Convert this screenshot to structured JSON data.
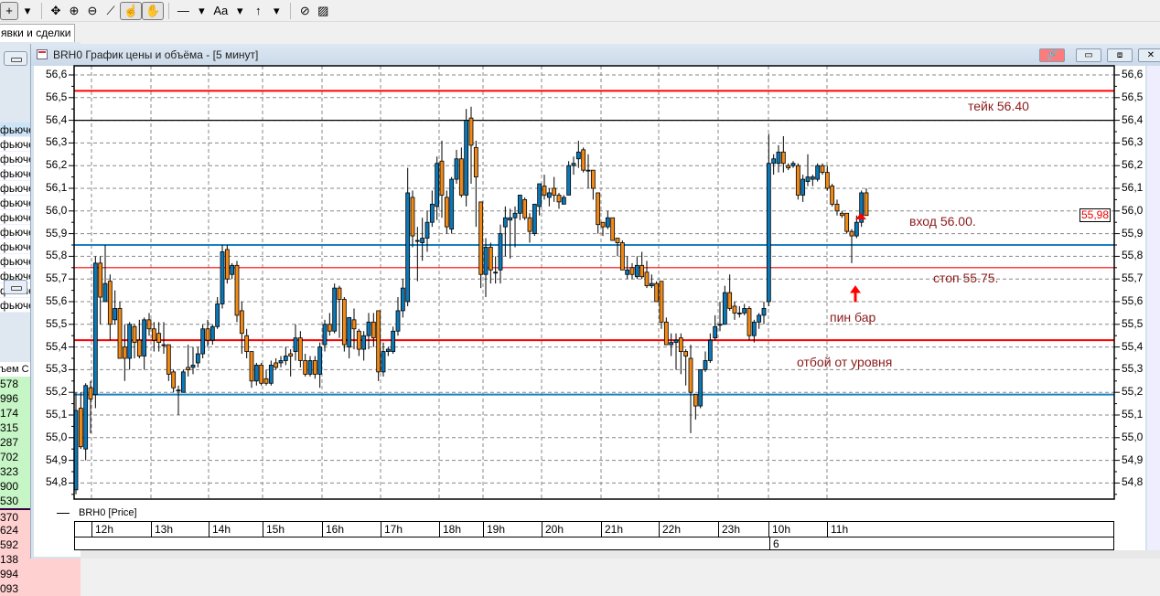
{
  "toolbar": {
    "items": [
      {
        "icon": "crosshair-icon",
        "glyph": "+"
      },
      {
        "icon": "dropdown-arrow-icon",
        "glyph": "▾"
      },
      {
        "icon": "move-icon",
        "glyph": "✥"
      },
      {
        "icon": "zoom-in-icon",
        "glyph": "⊕"
      },
      {
        "icon": "zoom-out-icon",
        "glyph": "⊖"
      },
      {
        "icon": "ruler-icon",
        "glyph": "⟋"
      },
      {
        "icon": "pointer-hand-icon",
        "glyph": "☝"
      },
      {
        "icon": "hand-icon",
        "glyph": "✋"
      },
      {
        "icon": "line-tool-icon",
        "glyph": "—"
      },
      {
        "icon": "dropdown-arrow-icon",
        "glyph": "▾"
      },
      {
        "icon": "text-tool-icon",
        "glyph": "Aa"
      },
      {
        "icon": "dropdown-arrow-icon",
        "glyph": "▾"
      },
      {
        "icon": "arrow-up-tool-icon",
        "glyph": "↑"
      },
      {
        "icon": "dropdown-arrow-icon",
        "glyph": "▾"
      },
      {
        "icon": "hide-drawings-icon",
        "glyph": "⊘"
      },
      {
        "icon": "eraser-icon",
        "glyph": "▨"
      }
    ]
  },
  "tabs": {
    "active": "явки и сделки"
  },
  "left_panel": {
    "list1": [
      "фьючe",
      "фьючe",
      "фьючe",
      "фьючe",
      "фьючe",
      "фьючe",
      "фьючe",
      "фьючe",
      "фьючe",
      "фьючe",
      "фьючe",
      "фьючe",
      "фьючe"
    ],
    "list2_header": "ъем С",
    "bids": [
      "578",
      "996",
      "174",
      "315",
      "287",
      "702",
      "323",
      "900",
      "530"
    ],
    "asks": [
      "370",
      "624",
      "592",
      "138",
      "994",
      "093"
    ],
    "bid_color": "#c6f5c6",
    "ask_color": "#ffd0d0"
  },
  "chart_window": {
    "title": "BRH0 График цены и объёма - [5 минут]",
    "link_button_color": "#ff7b7b",
    "legend": "BRH0 [Price]",
    "last_price": "55,98",
    "price_ticks": [
      "56,6",
      "56,5",
      "56,4",
      "56,3",
      "56,2",
      "56,1",
      "56,0",
      "55,9",
      "55,8",
      "55,7",
      "55,6",
      "55,5",
      "55,4",
      "55,3",
      "55,2",
      "55,1",
      "55,0",
      "54,9",
      "54,8"
    ],
    "time_labels": [
      "12h",
      "13h",
      "14h",
      "15h",
      "16h",
      "17h",
      "18h",
      "19h",
      "20h",
      "21h",
      "22h",
      "23h",
      "10h",
      "11h"
    ],
    "date_label": "6",
    "annotations": {
      "take": "тейк 56.40",
      "entry": "вход 56.00.",
      "stop": "стоп 55.75.",
      "pinbar": "пин бар",
      "bounce": "отбой от уровня"
    }
  },
  "chart_data": {
    "type": "candlestick",
    "ylim": [
      54.75,
      56.62
    ],
    "up_color": "#0b78b8",
    "down_color": "#f28a16",
    "levels": [
      {
        "price": 56.53,
        "color": "#ff0000",
        "weight": "thick"
      },
      {
        "price": 56.4,
        "color": "#000000",
        "weight": "thin"
      },
      {
        "price": 55.85,
        "color": "#1a80c0",
        "weight": "thick"
      },
      {
        "price": 55.75,
        "color": "#ff0000",
        "weight": "thin"
      },
      {
        "price": 55.43,
        "color": "#ff0000",
        "weight": "thick"
      },
      {
        "price": 55.19,
        "color": "#1a80c0",
        "weight": "thick"
      }
    ],
    "candles": [
      [
        54.77,
        55.2,
        54.75,
        55.12
      ],
      [
        55.13,
        55.2,
        54.95,
        54.96
      ],
      [
        54.95,
        55.24,
        54.9,
        55.23
      ],
      [
        55.22,
        55.25,
        55.02,
        55.17
      ],
      [
        55.19,
        55.8,
        55.13,
        55.77
      ],
      [
        55.77,
        55.8,
        55.5,
        55.62
      ],
      [
        55.6,
        55.85,
        55.6,
        55.68
      ],
      [
        55.69,
        55.72,
        55.43,
        55.5
      ],
      [
        55.52,
        55.65,
        55.5,
        55.57
      ],
      [
        55.57,
        55.6,
        55.35,
        55.35
      ],
      [
        55.4,
        55.5,
        55.25,
        55.35
      ],
      [
        55.35,
        55.51,
        55.3,
        55.5
      ],
      [
        55.49,
        55.5,
        55.35,
        55.42
      ],
      [
        55.43,
        55.52,
        55.35,
        55.36
      ],
      [
        55.36,
        55.53,
        55.3,
        55.52
      ],
      [
        55.52,
        55.55,
        55.45,
        55.48
      ],
      [
        55.48,
        55.51,
        55.38,
        55.43
      ],
      [
        55.46,
        55.51,
        55.38,
        55.42
      ],
      [
        55.41,
        55.51,
        55.37,
        55.41
      ],
      [
        55.41,
        55.41,
        55.25,
        55.28
      ],
      [
        55.29,
        55.3,
        55.2,
        55.22
      ],
      [
        55.21,
        55.23,
        55.1,
        55.21
      ],
      [
        55.2,
        55.3,
        55.2,
        55.29
      ],
      [
        55.31,
        55.41,
        55.27,
        55.3
      ],
      [
        55.31,
        55.4,
        55.28,
        55.32
      ],
      [
        55.33,
        55.4,
        55.31,
        55.37
      ],
      [
        55.37,
        55.5,
        55.35,
        55.48
      ],
      [
        55.48,
        55.52,
        55.4,
        55.43
      ],
      [
        55.43,
        55.5,
        55.41,
        55.49
      ],
      [
        55.49,
        55.62,
        55.48,
        55.59
      ],
      [
        55.59,
        55.85,
        55.57,
        55.82
      ],
      [
        55.83,
        55.85,
        55.68,
        55.7
      ],
      [
        55.72,
        55.77,
        55.7,
        55.76
      ],
      [
        55.76,
        55.78,
        55.51,
        55.54
      ],
      [
        55.56,
        55.6,
        55.37,
        55.46
      ],
      [
        55.45,
        55.48,
        55.35,
        55.38
      ],
      [
        55.38,
        55.38,
        55.22,
        55.25
      ],
      [
        55.25,
        55.33,
        55.23,
        55.32
      ],
      [
        55.32,
        55.33,
        55.23,
        55.24
      ],
      [
        55.26,
        55.3,
        55.23,
        55.24
      ],
      [
        55.24,
        55.34,
        55.23,
        55.32
      ],
      [
        55.33,
        55.35,
        55.3,
        55.31
      ],
      [
        55.33,
        55.36,
        55.31,
        55.34
      ],
      [
        55.34,
        55.4,
        55.32,
        55.36
      ],
      [
        55.37,
        55.39,
        55.27,
        55.36
      ],
      [
        55.38,
        55.5,
        55.34,
        55.44
      ],
      [
        55.44,
        55.47,
        55.31,
        55.34
      ],
      [
        55.34,
        55.37,
        55.27,
        55.28
      ],
      [
        55.28,
        55.36,
        55.27,
        55.34
      ],
      [
        55.34,
        55.36,
        55.26,
        55.28
      ],
      [
        55.28,
        55.42,
        55.22,
        55.4
      ],
      [
        55.41,
        55.52,
        55.38,
        55.5
      ],
      [
        55.5,
        55.55,
        55.45,
        55.47
      ],
      [
        55.47,
        55.68,
        55.46,
        55.66
      ],
      [
        55.66,
        55.67,
        55.44,
        55.61
      ],
      [
        55.61,
        55.62,
        55.38,
        55.41
      ],
      [
        55.4,
        55.53,
        55.35,
        55.53
      ],
      [
        55.52,
        55.57,
        55.39,
        55.48
      ],
      [
        55.47,
        55.48,
        55.36,
        55.39
      ],
      [
        55.39,
        55.47,
        55.34,
        55.45
      ],
      [
        55.45,
        55.55,
        55.39,
        55.51
      ],
      [
        55.51,
        55.55,
        55.4,
        55.44
      ],
      [
        55.56,
        55.56,
        55.25,
        55.29
      ],
      [
        55.29,
        55.42,
        55.27,
        55.38
      ],
      [
        55.38,
        55.4,
        55.36,
        55.39
      ],
      [
        55.38,
        55.49,
        55.37,
        55.47
      ],
      [
        55.47,
        55.62,
        55.45,
        55.56
      ],
      [
        55.56,
        55.7,
        55.53,
        55.66
      ],
      [
        55.6,
        56.19,
        55.58,
        56.08
      ],
      [
        56.06,
        56.09,
        55.84,
        55.89
      ],
      [
        55.87,
        55.93,
        55.69,
        55.87
      ],
      [
        55.86,
        55.97,
        55.78,
        55.88
      ],
      [
        55.88,
        56.0,
        55.82,
        55.95
      ],
      [
        55.95,
        56.09,
        55.93,
        56.03
      ],
      [
        56.02,
        56.24,
        55.96,
        56.21
      ],
      [
        56.22,
        56.31,
        55.97,
        56.07
      ],
      [
        56.06,
        56.09,
        55.9,
        55.93
      ],
      [
        55.92,
        56.15,
        55.9,
        56.14
      ],
      [
        56.14,
        56.27,
        56.12,
        56.23
      ],
      [
        56.23,
        56.28,
        56.06,
        56.07
      ],
      [
        56.07,
        56.45,
        56.02,
        56.4
      ],
      [
        56.41,
        56.46,
        56.12,
        56.29
      ],
      [
        56.28,
        56.31,
        55.93,
        56.15
      ],
      [
        56.04,
        56.04,
        55.66,
        55.72
      ],
      [
        55.72,
        55.88,
        55.62,
        55.84
      ],
      [
        55.84,
        55.86,
        55.68,
        55.74
      ],
      [
        55.73,
        55.8,
        55.68,
        55.73
      ],
      [
        55.74,
        55.94,
        55.68,
        55.9
      ],
      [
        55.93,
        56.02,
        55.8,
        55.97
      ],
      [
        55.96,
        56.01,
        55.79,
        55.97
      ],
      [
        55.97,
        56.02,
        55.84,
        55.99
      ],
      [
        55.99,
        56.07,
        55.96,
        56.07
      ],
      [
        56.05,
        56.06,
        55.96,
        55.97
      ],
      [
        55.97,
        55.99,
        55.86,
        55.91
      ],
      [
        55.9,
        56.03,
        55.89,
        56.03
      ],
      [
        56.02,
        56.12,
        55.98,
        56.12
      ],
      [
        56.11,
        56.16,
        56.05,
        56.07
      ],
      [
        56.06,
        56.1,
        56.02,
        56.08
      ],
      [
        56.1,
        56.15,
        56.04,
        56.07
      ],
      [
        56.07,
        56.08,
        56.01,
        56.04
      ],
      [
        56.03,
        56.07,
        56.03,
        56.06
      ],
      [
        56.07,
        56.22,
        56.07,
        56.2
      ],
      [
        56.2,
        56.24,
        56.16,
        56.21
      ],
      [
        56.23,
        56.31,
        56.19,
        56.26
      ],
      [
        56.27,
        56.28,
        56.17,
        56.18
      ],
      [
        56.18,
        56.25,
        56.1,
        56.18
      ],
      [
        56.18,
        56.18,
        56.05,
        56.1
      ],
      [
        56.08,
        56.08,
        55.9,
        55.94
      ],
      [
        55.95,
        55.95,
        55.89,
        55.93
      ],
      [
        55.93,
        56.0,
        55.92,
        55.97
      ],
      [
        55.97,
        55.97,
        55.87,
        55.87
      ],
      [
        55.88,
        55.88,
        55.8,
        55.86
      ],
      [
        55.86,
        55.87,
        55.74,
        55.74
      ],
      [
        55.72,
        55.8,
        55.7,
        55.74
      ],
      [
        55.75,
        55.77,
        55.7,
        55.72
      ],
      [
        55.71,
        55.8,
        55.7,
        55.76
      ],
      [
        55.76,
        55.82,
        55.7,
        55.71
      ],
      [
        55.73,
        55.78,
        55.66,
        55.67
      ],
      [
        55.67,
        55.72,
        55.66,
        55.68
      ],
      [
        55.68,
        55.69,
        55.6,
        55.6
      ],
      [
        55.69,
        55.69,
        55.48,
        55.51
      ],
      [
        55.51,
        55.53,
        55.41,
        55.41
      ],
      [
        55.41,
        55.46,
        55.36,
        55.42
      ],
      [
        55.42,
        55.46,
        55.3,
        55.43
      ],
      [
        55.44,
        55.46,
        55.28,
        55.38
      ],
      [
        55.38,
        55.39,
        55.23,
        55.36
      ],
      [
        55.35,
        55.41,
        55.02,
        55.2
      ],
      [
        55.19,
        55.19,
        55.08,
        55.14
      ],
      [
        55.14,
        55.3,
        55.13,
        55.3
      ],
      [
        55.3,
        55.38,
        55.29,
        55.34
      ],
      [
        55.34,
        55.46,
        55.33,
        55.43
      ],
      [
        55.44,
        55.54,
        55.43,
        55.49
      ],
      [
        55.5,
        55.6,
        55.47,
        55.5
      ],
      [
        55.5,
        55.67,
        55.5,
        55.64
      ],
      [
        55.64,
        55.72,
        55.56,
        55.57
      ],
      [
        55.58,
        55.6,
        55.52,
        55.55
      ],
      [
        55.55,
        55.58,
        55.53,
        55.55
      ],
      [
        55.55,
        55.59,
        55.54,
        55.57
      ],
      [
        55.57,
        55.58,
        55.43,
        55.45
      ],
      [
        55.45,
        55.52,
        55.42,
        55.51
      ],
      [
        55.51,
        55.55,
        55.48,
        55.54
      ],
      [
        55.54,
        55.6,
        55.5,
        55.57
      ],
      [
        55.6,
        56.34,
        55.58,
        56.21
      ],
      [
        56.21,
        56.25,
        56.16,
        56.23
      ],
      [
        56.21,
        56.29,
        56.17,
        56.26
      ],
      [
        56.26,
        56.33,
        56.17,
        56.21
      ],
      [
        56.2,
        56.21,
        56.18,
        56.19
      ],
      [
        56.2,
        56.22,
        56.19,
        56.21
      ],
      [
        56.2,
        56.21,
        56.05,
        56.07
      ],
      [
        56.07,
        56.16,
        56.04,
        56.14
      ],
      [
        56.13,
        56.25,
        56.11,
        56.15
      ],
      [
        56.14,
        56.16,
        56.11,
        56.15
      ],
      [
        56.14,
        56.21,
        56.13,
        56.2
      ],
      [
        56.2,
        56.21,
        56.16,
        56.17
      ],
      [
        56.17,
        56.2,
        56.09,
        56.1
      ],
      [
        56.11,
        56.12,
        56.02,
        56.03
      ],
      [
        56.03,
        56.05,
        55.98,
        56.0
      ],
      [
        55.99,
        56.0,
        55.97,
        55.98
      ],
      [
        55.99,
        55.99,
        55.9,
        55.91
      ],
      [
        55.91,
        55.92,
        55.77,
        55.89
      ],
      [
        55.89,
        55.98,
        55.88,
        55.95
      ],
      [
        55.95,
        56.09,
        55.93,
        56.08
      ],
      [
        56.08,
        56.1,
        55.98,
        55.98
      ]
    ]
  }
}
